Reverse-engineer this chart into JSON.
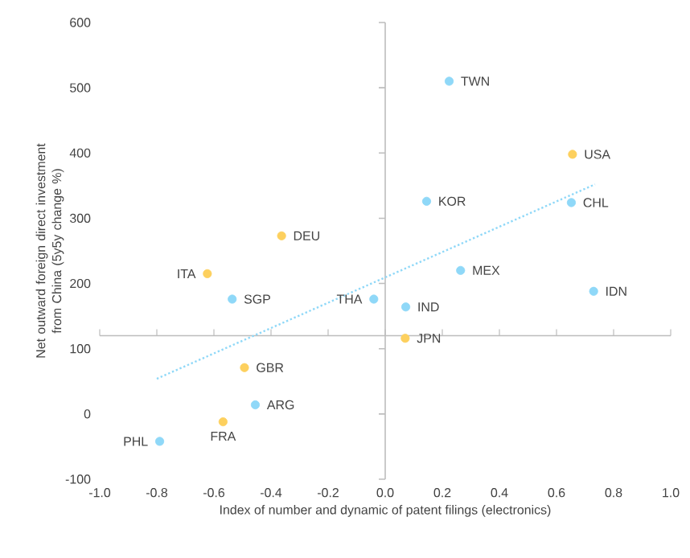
{
  "chart_data": {
    "type": "scatter",
    "xlabel": "Index of number and dynamic of patent filings (electronics)",
    "ylabel": "Net outward foreign direct investment from China (5y5y change %)",
    "xlim": [
      -1.0,
      1.0
    ],
    "ylim": [
      -100,
      600
    ],
    "xticks": [
      {
        "value": -1.0,
        "label": "-1.0"
      },
      {
        "value": -0.8,
        "label": "-0.8"
      },
      {
        "value": -0.6,
        "label": "-0.6"
      },
      {
        "value": -0.4,
        "label": "-0.4"
      },
      {
        "value": -0.2,
        "label": "-0.2"
      },
      {
        "value": 0,
        "label": "0.0"
      },
      {
        "value": 0.2,
        "label": "0.2"
      },
      {
        "value": 0.4,
        "label": "0.4"
      },
      {
        "value": 0.6,
        "label": "0.6"
      },
      {
        "value": 0.8,
        "label": "0.8"
      },
      {
        "value": 1.0,
        "label": "1.0"
      }
    ],
    "yticks": [
      -100,
      0,
      100,
      200,
      300,
      400,
      500,
      600
    ],
    "marker": "circle",
    "grid": false,
    "ref_lines": [
      {
        "axis": "y",
        "value": 120,
        "color": "#bdbdbd"
      },
      {
        "axis": "x",
        "value": 0,
        "color": "#bdbdbd"
      }
    ],
    "series": [
      {
        "color": "#8fd8f8",
        "x": [
          0.224,
          0.145,
          0.652,
          0.264,
          -0.536,
          -0.04,
          0.072,
          0.73,
          -0.455,
          -0.79
        ],
        "values": [
          510,
          326,
          324,
          220,
          176,
          176,
          164,
          188,
          14,
          -42
        ]
      },
      {
        "color": "#fdd05e",
        "x": [
          0.656,
          -0.363,
          -0.623,
          0.07,
          -0.493,
          -0.568
        ],
        "values": [
          398,
          273,
          215,
          116,
          71,
          -12
        ]
      },
      {
        "type": "line",
        "color": "#8fd8f8",
        "line_style": "dotted",
        "marker": "none",
        "x": [
          -0.8,
          0.735
        ],
        "values": [
          54,
          352
        ]
      }
    ],
    "annotations": [
      {
        "text": "TWN",
        "x": 0.224,
        "y": 510
      },
      {
        "text": "KOR",
        "x": 0.145,
        "y": 326
      },
      {
        "text": "CHL",
        "x": 0.652,
        "y": 324
      },
      {
        "text": "MEX",
        "x": 0.264,
        "y": 220
      },
      {
        "text": "SGP",
        "x": -0.536,
        "y": 176
      },
      {
        "text": "THA",
        "x": -0.04,
        "y": 176
      },
      {
        "text": "IND",
        "x": 0.072,
        "y": 164
      },
      {
        "text": "IDN",
        "x": 0.73,
        "y": 188
      },
      {
        "text": "ARG",
        "x": -0.455,
        "y": 14
      },
      {
        "text": "PHL",
        "x": -0.79,
        "y": -42
      },
      {
        "text": "USA",
        "x": 0.656,
        "y": 398
      },
      {
        "text": "DEU",
        "x": -0.363,
        "y": 273
      },
      {
        "text": "ITA",
        "x": -0.623,
        "y": 215
      },
      {
        "text": "JPN",
        "x": 0.07,
        "y": 116
      },
      {
        "text": "GBR",
        "x": -0.493,
        "y": 71
      },
      {
        "text": "FRA",
        "x": -0.568,
        "y": -12
      }
    ]
  }
}
